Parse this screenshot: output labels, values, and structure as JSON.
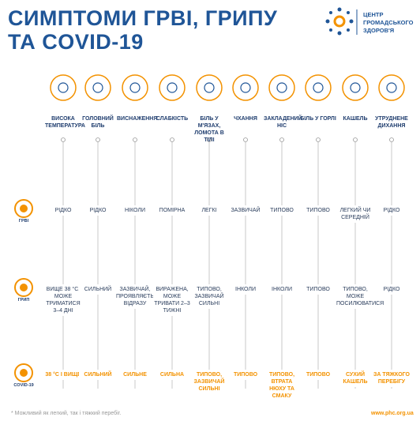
{
  "header": {
    "title_lines": [
      "СИМПТОМИ ГРВІ, ГРИПУ",
      "ТА COVID-19"
    ],
    "logo_lines": [
      "ЦЕНТР",
      "ГРОМАДСЬКОГО",
      "ЗДОРОВ'Я"
    ]
  },
  "symptoms": [
    "ВИСОКА ТЕМПЕРАТУРА",
    "ГОЛОВНИЙ БІЛЬ",
    "ВИСНАЖЕННЯ",
    "СЛАБКІСТЬ",
    "БІЛЬ У М'ЯЗАХ, ЛОМОТА В ТІЛІ",
    "ЧХАННЯ",
    "ЗАКЛАДЕНИЙ НІС",
    "БІЛЬ У ГОРЛІ",
    "КАШЕЛЬ",
    "УТРУДНЕНЕ ДИХАННЯ"
  ],
  "rows": [
    {
      "name": "ГРВІ",
      "values": [
        "РІДКО",
        "РІДКО",
        "НІКОЛИ",
        "ПОМІРНА",
        "ЛЕГКІ",
        "ЗАЗВИЧАЙ",
        "ТИПОВО",
        "ТИПОВО",
        "ЛЕГКИЙ ЧИ СЕРЕДНІЙ",
        "РІДКО"
      ]
    },
    {
      "name": "ГРИП",
      "values": [
        "ВИЩЕ 38 °С, МОЖЕ ТРИМАТИСЯ 3–4 ДНІ",
        "СИЛЬНИЙ",
        "ЗАЗВИЧАЙ, ПРОЯВЛЯЄТЬСЯ ВІДРАЗУ",
        "ВИРАЖЕНА, МОЖЕ ТРИВАТИ 2–3 ТИЖНІ",
        "ТИПОВО, ЗАЗВИЧАЙ СИЛЬНІ",
        "ІНКОЛИ",
        "ІНКОЛИ",
        "ТИПОВО",
        "ТИПОВО, МОЖЕ ПОСИЛЮВАТИСЯ",
        "РІДКО"
      ]
    },
    {
      "name": "COVID-19",
      "values": [
        "38 °С І ВИЩЕ",
        "СИЛЬНИЙ",
        "СИЛЬНЕ",
        "СИЛЬНА",
        "ТИПОВО, ЗАЗВИЧАЙ СИЛЬНІ",
        "ТИПОВО",
        "ТИПОВО, ВТРАТА НЮХУ ТА СМАКУ",
        "ТИПОВО",
        "СУХИЙ КАШЕЛЬ",
        "ЗА ТЯЖКОГО ПЕРЕБІГУ"
      ]
    }
  ],
  "footer": {
    "note": "* Можливий як легкий, так і тяжкий перебіг.",
    "url": "www.phc.org.ua"
  }
}
